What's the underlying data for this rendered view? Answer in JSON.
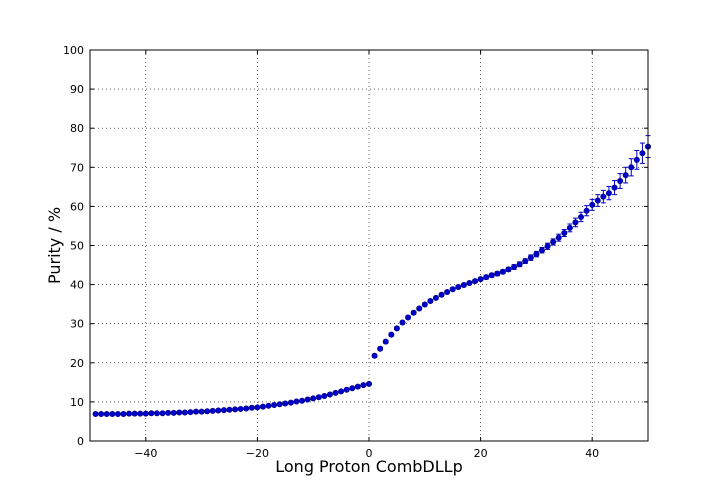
{
  "chart_data": {
    "type": "scatter",
    "title": "",
    "xlabel": "Long Proton CombDLLp",
    "ylabel": "Purity / %",
    "xlim": [
      -50,
      50
    ],
    "ylim": [
      0,
      100
    ],
    "grid": true,
    "x_ticks": [
      -40,
      -20,
      0,
      20,
      40
    ],
    "y_ticks": [
      0,
      10,
      20,
      30,
      40,
      50,
      60,
      70,
      80,
      90,
      100
    ],
    "x_tick_labels": [
      "−40",
      "−20",
      "0",
      "20",
      "40"
    ],
    "y_tick_labels": [
      "0",
      "10",
      "20",
      "30",
      "40",
      "50",
      "60",
      "70",
      "80",
      "90",
      "100"
    ],
    "marker_color": "#0000cc",
    "series": [
      {
        "x": [
          -49,
          -48,
          -47,
          -46,
          -45,
          -44,
          -43,
          -42,
          -41,
          -40,
          -39,
          -38,
          -37,
          -36,
          -35,
          -34,
          -33,
          -32,
          -31,
          -30,
          -29,
          -28,
          -27,
          -26,
          -25,
          -24,
          -23,
          -22,
          -21,
          -20,
          -19,
          -18,
          -17,
          -16,
          -15,
          -14,
          -13,
          -12,
          -11,
          -10,
          -9,
          -8,
          -7,
          -6,
          -5,
          -4,
          -3,
          -2,
          -1,
          0,
          1,
          2,
          3,
          4,
          5,
          6,
          7,
          8,
          9,
          10,
          11,
          12,
          13,
          14,
          15,
          16,
          17,
          18,
          19,
          20,
          21,
          22,
          23,
          24,
          25,
          26,
          27,
          28,
          29,
          30,
          31,
          32,
          33,
          34,
          35,
          36,
          37,
          38,
          39,
          40,
          41,
          42,
          43,
          44,
          45,
          46,
          47,
          48,
          49,
          50
        ],
        "y": [
          6.9,
          6.9,
          6.9,
          6.9,
          6.9,
          6.9,
          7.0,
          7.0,
          7.0,
          7.0,
          7.1,
          7.1,
          7.1,
          7.2,
          7.2,
          7.3,
          7.3,
          7.4,
          7.5,
          7.5,
          7.6,
          7.7,
          7.8,
          7.9,
          8.0,
          8.1,
          8.2,
          8.3,
          8.5,
          8.6,
          8.8,
          9.0,
          9.2,
          9.4,
          9.6,
          9.8,
          10.1,
          10.3,
          10.6,
          10.9,
          11.2,
          11.5,
          11.9,
          12.3,
          12.7,
          13.1,
          13.5,
          13.9,
          14.3,
          14.6,
          21.8,
          23.6,
          25.4,
          27.2,
          28.8,
          30.3,
          31.6,
          32.8,
          33.9,
          34.9,
          35.8,
          36.6,
          37.4,
          38.1,
          38.8,
          39.4,
          39.9,
          40.4,
          40.9,
          41.4,
          41.9,
          42.4,
          42.8,
          43.3,
          43.9,
          44.5,
          45.2,
          46.0,
          46.9,
          47.8,
          48.8,
          49.8,
          50.9,
          52.0,
          53.2,
          54.5,
          55.9,
          57.3,
          58.9,
          60.4,
          61.5,
          62.5,
          63.4,
          64.8,
          66.5,
          68.0,
          70.0,
          71.9,
          73.6,
          75.3
        ],
        "err": [
          0.15,
          0.15,
          0.15,
          0.15,
          0.15,
          0.15,
          0.15,
          0.15,
          0.15,
          0.15,
          0.15,
          0.15,
          0.15,
          0.15,
          0.15,
          0.15,
          0.15,
          0.15,
          0.15,
          0.15,
          0.15,
          0.15,
          0.15,
          0.15,
          0.15,
          0.15,
          0.15,
          0.15,
          0.15,
          0.15,
          0.15,
          0.15,
          0.15,
          0.15,
          0.15,
          0.15,
          0.15,
          0.15,
          0.15,
          0.15,
          0.2,
          0.2,
          0.2,
          0.2,
          0.2,
          0.2,
          0.2,
          0.2,
          0.2,
          0.3,
          0.4,
          0.4,
          0.4,
          0.4,
          0.4,
          0.4,
          0.4,
          0.4,
          0.4,
          0.4,
          0.4,
          0.4,
          0.4,
          0.4,
          0.4,
          0.4,
          0.4,
          0.4,
          0.4,
          0.4,
          0.5,
          0.5,
          0.5,
          0.5,
          0.5,
          0.6,
          0.6,
          0.6,
          0.7,
          0.7,
          0.7,
          0.8,
          0.8,
          0.9,
          0.9,
          1.0,
          1.1,
          1.2,
          1.3,
          1.4,
          1.5,
          1.6,
          1.7,
          1.8,
          1.9,
          2.0,
          2.2,
          2.4,
          2.6,
          2.8
        ]
      }
    ]
  }
}
